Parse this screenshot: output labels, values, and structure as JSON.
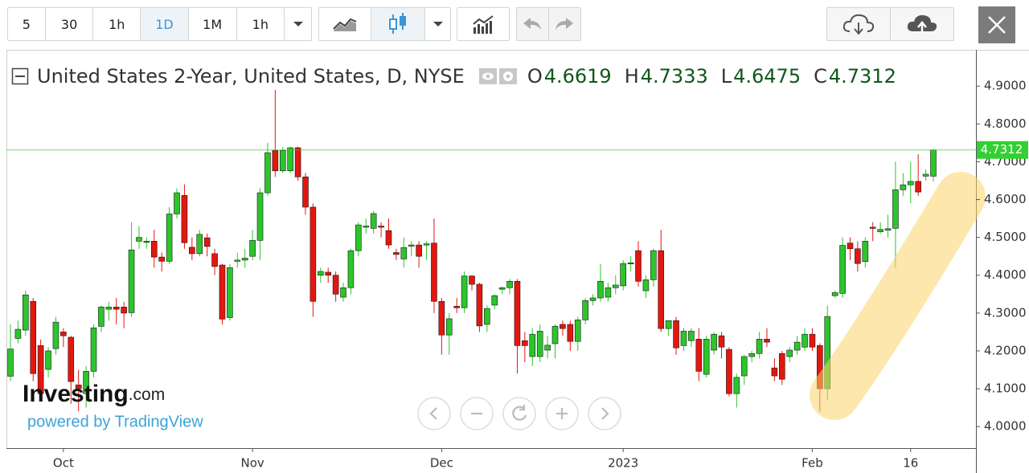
{
  "toolbar": {
    "intervals": [
      "5",
      "30",
      "1h",
      "1D",
      "1M",
      "1h"
    ]
  },
  "branding": {
    "logo": "Investing",
    "logo_suffix": ".com",
    "powered_by": "powered by TradingView"
  },
  "chart_data": {
    "type": "candlestick",
    "title": "United States 2-Year, United States, D, NYSE",
    "ohlc_labels": [
      "O",
      "H",
      "L",
      "C"
    ],
    "up_color": "#2cc52c",
    "down_color": "#e3170f",
    "last_price_color": "#33d033",
    "grid": false,
    "categories": [
      null,
      null,
      null,
      null,
      null,
      null,
      null,
      "Oct",
      null,
      null,
      null,
      null,
      null,
      null,
      null,
      null,
      null,
      null,
      null,
      null,
      null,
      null,
      null,
      null,
      null,
      null,
      null,
      null,
      null,
      null,
      null,
      null,
      "Nov",
      null,
      null,
      null,
      null,
      null,
      null,
      null,
      null,
      null,
      null,
      null,
      null,
      null,
      null,
      null,
      null,
      null,
      null,
      null,
      null,
      null,
      null,
      null,
      null,
      "Dec",
      null,
      null,
      null,
      null,
      null,
      null,
      null,
      null,
      null,
      null,
      null,
      null,
      null,
      null,
      null,
      null,
      null,
      null,
      null,
      null,
      null,
      null,
      null,
      "2023",
      null,
      null,
      null,
      null,
      null,
      null,
      null,
      null,
      null,
      null,
      null,
      null,
      null,
      null,
      null,
      null,
      null,
      null,
      null,
      null,
      null,
      null,
      null,
      null,
      "Feb",
      null,
      null,
      null,
      null,
      null,
      null,
      null,
      null,
      null,
      null,
      null,
      null,
      "16",
      null,
      null,
      null
    ],
    "open": [
      4.133,
      4.233,
      4.255,
      4.331,
      4.214,
      4.151,
      4.206,
      4.25,
      4.236,
      4.11,
      4.087,
      4.146,
      4.265,
      4.31,
      4.316,
      4.316,
      4.301,
      4.49,
      4.49,
      4.49,
      4.448,
      4.437,
      4.562,
      4.611,
      4.474,
      4.457,
      4.499,
      4.457,
      4.427,
      4.288,
      4.44,
      4.44,
      4.45,
      4.492,
      4.618,
      4.73,
      4.676,
      4.676,
      4.737,
      4.66,
      4.58,
      4.4,
      4.408,
      4.4,
      4.342,
      4.367,
      4.465,
      4.53,
      4.524,
      4.53,
      4.518,
      4.46,
      4.443,
      4.477,
      4.48,
      4.48,
      4.485,
      4.331,
      4.242,
      4.318,
      4.314,
      4.398,
      4.376,
      4.27,
      4.321,
      4.363,
      4.367,
      4.384,
      4.227,
      4.185,
      4.185,
      4.202,
      4.219,
      4.27,
      4.27,
      4.225,
      4.282,
      4.333,
      4.34,
      4.342,
      4.367,
      4.372,
      4.431,
      4.465,
      4.359,
      4.388,
      4.465,
      4.259,
      4.28,
      4.214,
      4.227,
      4.231,
      4.138,
      4.202,
      4.24,
      4.204,
      4.087,
      4.134,
      4.185,
      4.193,
      4.231,
      4.155,
      4.193,
      4.185,
      4.202,
      4.21,
      4.244,
      4.214,
      4.1,
      4.346,
      4.352,
      4.485,
      4.47,
      4.436,
      4.527,
      4.515,
      4.519,
      4.524,
      4.626,
      4.639,
      4.648,
      4.662,
      4.6619
    ],
    "high": [
      4.27,
      4.28,
      4.36,
      4.34,
      4.23,
      4.21,
      4.29,
      4.26,
      4.24,
      4.15,
      4.16,
      4.27,
      4.32,
      4.33,
      4.34,
      4.33,
      4.54,
      4.53,
      4.5,
      4.52,
      4.46,
      4.58,
      4.63,
      4.64,
      4.5,
      4.52,
      4.51,
      4.47,
      4.43,
      4.43,
      4.46,
      4.47,
      4.52,
      4.63,
      4.75,
      4.89,
      4.74,
      4.74,
      4.74,
      4.67,
      4.59,
      4.42,
      4.42,
      4.41,
      4.38,
      4.47,
      4.54,
      4.55,
      4.57,
      4.54,
      4.55,
      4.47,
      4.5,
      4.49,
      4.49,
      4.49,
      4.55,
      4.34,
      4.3,
      4.34,
      4.41,
      4.4,
      4.38,
      4.32,
      4.35,
      4.37,
      4.39,
      4.39,
      4.25,
      4.26,
      4.27,
      4.24,
      4.27,
      4.28,
      4.28,
      4.29,
      4.34,
      4.35,
      4.43,
      4.38,
      4.4,
      4.44,
      4.45,
      4.49,
      4.4,
      4.47,
      4.52,
      4.28,
      4.29,
      4.26,
      4.26,
      4.26,
      4.24,
      4.25,
      4.25,
      4.21,
      4.14,
      4.19,
      4.2,
      4.25,
      4.26,
      4.18,
      4.2,
      4.21,
      4.24,
      4.26,
      4.26,
      4.22,
      4.32,
      4.36,
      4.5,
      4.5,
      4.49,
      4.5,
      4.54,
      4.54,
      4.56,
      4.7,
      4.67,
      4.7,
      4.72,
      4.68,
      4.7333
    ],
    "low": [
      4.12,
      4.22,
      4.24,
      4.12,
      4.07,
      4.13,
      4.19,
      4.21,
      4.06,
      4.04,
      4.05,
      4.13,
      4.25,
      4.28,
      4.27,
      4.26,
      4.29,
      4.47,
      4.47,
      4.42,
      4.41,
      4.43,
      4.55,
      4.47,
      4.44,
      4.45,
      4.45,
      4.4,
      4.27,
      4.28,
      4.42,
      4.42,
      4.44,
      4.44,
      4.61,
      4.66,
      4.67,
      4.67,
      4.65,
      4.56,
      4.29,
      4.38,
      4.38,
      4.33,
      4.33,
      4.35,
      4.45,
      4.51,
      4.51,
      4.5,
      4.47,
      4.44,
      4.42,
      4.45,
      4.42,
      4.44,
      4.3,
      4.19,
      4.19,
      4.3,
      4.3,
      4.36,
      4.25,
      4.25,
      4.31,
      4.35,
      4.35,
      4.14,
      4.17,
      4.16,
      4.17,
      4.18,
      4.18,
      4.24,
      4.2,
      4.2,
      4.27,
      4.32,
      4.33,
      4.33,
      4.35,
      4.36,
      4.41,
      4.37,
      4.34,
      4.37,
      4.25,
      4.24,
      4.19,
      4.2,
      4.21,
      4.12,
      4.13,
      4.19,
      4.18,
      4.08,
      4.05,
      4.11,
      4.17,
      4.18,
      4.21,
      4.12,
      4.11,
      4.17,
      4.19,
      4.2,
      4.2,
      4.04,
      4.07,
      4.34,
      4.34,
      4.44,
      4.41,
      4.42,
      4.49,
      4.51,
      4.5,
      4.42,
      4.61,
      4.59,
      4.61,
      4.65,
      4.6475
    ],
    "close": [
      4.205,
      4.257,
      4.348,
      4.14,
      4.087,
      4.2,
      4.276,
      4.24,
      4.119,
      4.1,
      4.146,
      4.261,
      4.316,
      4.316,
      4.31,
      4.3,
      4.467,
      4.5,
      4.49,
      4.448,
      4.437,
      4.562,
      4.618,
      4.486,
      4.457,
      4.508,
      4.476,
      4.423,
      4.284,
      4.42,
      4.44,
      4.445,
      4.492,
      4.618,
      4.724,
      4.676,
      4.73,
      4.737,
      4.66,
      4.58,
      4.331,
      4.41,
      4.4,
      4.35,
      4.367,
      4.465,
      4.533,
      4.53,
      4.563,
      4.527,
      4.48,
      4.455,
      4.473,
      4.48,
      4.45,
      4.483,
      4.331,
      4.242,
      4.285,
      4.314,
      4.398,
      4.376,
      4.266,
      4.312,
      4.346,
      4.367,
      4.384,
      4.214,
      4.214,
      4.244,
      4.252,
      4.215,
      4.265,
      4.259,
      4.225,
      4.282,
      4.333,
      4.34,
      4.384,
      4.367,
      4.374,
      4.431,
      4.433,
      4.384,
      4.388,
      4.465,
      4.259,
      4.28,
      4.208,
      4.252,
      4.252,
      4.146,
      4.231,
      4.244,
      4.21,
      4.087,
      4.13,
      4.185,
      4.193,
      4.231,
      4.223,
      4.134,
      4.125,
      4.202,
      4.223,
      4.244,
      4.21,
      4.1,
      4.291,
      4.354,
      4.479,
      4.47,
      4.431,
      4.49,
      4.524,
      4.521,
      4.523,
      4.626,
      4.639,
      4.648,
      4.62,
      4.667,
      4.7312
    ],
    "ylim": [
      3.943,
      4.996
    ],
    "yticks": [
      {
        "value": 4.0,
        "label": "4.0000"
      },
      {
        "value": 4.1,
        "label": "4.1000"
      },
      {
        "value": 4.2,
        "label": "4.2000"
      },
      {
        "value": 4.3,
        "label": "4.3000"
      },
      {
        "value": 4.4,
        "label": "4.4000"
      },
      {
        "value": 4.5,
        "label": "4.5000"
      },
      {
        "value": 4.6,
        "label": "4.6000"
      },
      {
        "value": 4.7,
        "label": "4.7000"
      },
      {
        "value": 4.8,
        "label": "4.8000"
      },
      {
        "value": 4.9,
        "label": "4.9000"
      }
    ]
  }
}
